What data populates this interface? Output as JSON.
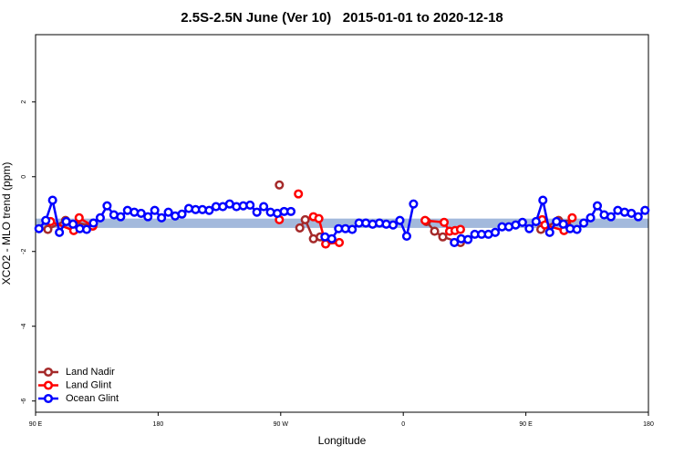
{
  "chart_data": {
    "type": "line",
    "title": "2.5S-2.5N June (Ver 10)   2015-01-01 to 2020-12-18",
    "xlabel": "Longitude",
    "ylabel": "XCO2 - MLO trend (ppm)",
    "xlim": [
      90,
      540
    ],
    "ylim": [
      -6.3,
      3.8
    ],
    "xticks": [
      {
        "value": 90,
        "label": "90 E"
      },
      180,
      {
        "value": 270,
        "label": "90 W"
      },
      {
        "value": 360,
        "label": "0"
      },
      {
        "value": 450,
        "label": "90 E"
      },
      {
        "value": 540,
        "label": "180"
      }
    ],
    "yticks": [
      -6,
      -4,
      -2,
      0,
      2
    ],
    "band": [
      -1.37,
      -1.12
    ],
    "band_color": "#a3b9dc",
    "legend": "bottom-left",
    "series": [
      {
        "name": "Land Nadir",
        "color": "#a52a2a",
        "x": [
          99,
          112,
          132,
          200,
          269,
          276,
          284,
          288,
          294,
          299,
          338,
          377,
          383,
          389,
          402,
          430,
          461,
          474,
          480
        ],
        "values": [
          -1.41,
          -1.17,
          -1.32,
          null,
          -0.22,
          null,
          -1.37,
          -1.15,
          -1.66,
          -1.61,
          null,
          -1.2,
          -1.46,
          -1.61,
          -1.76,
          null,
          -1.41,
          -1.17,
          -1.27
        ]
      },
      {
        "name": "Land Glint",
        "color": "#ff0000",
        "x": [
          101,
          118,
          122,
          132,
          200,
          269,
          276,
          283,
          288,
          294,
          298,
          303,
          313,
          345,
          376,
          390,
          394,
          398,
          402,
          430,
          462,
          464,
          478,
          484
        ],
        "values": [
          -1.2,
          -1.44,
          -1.1,
          -1.32,
          null,
          -1.15,
          null,
          -0.46,
          null,
          -1.07,
          -1.12,
          -1.8,
          -1.76,
          null,
          -1.17,
          -1.22,
          -1.46,
          -1.44,
          -1.41,
          null,
          -1.15,
          -1.29,
          -1.44,
          -1.1
        ]
      },
      {
        "name": "Ocean Glint",
        "color": "#0000ff",
        "x": [
          92.5,
          97.5,
          102.5,
          107.5,
          112.5,
          117.5,
          122.5,
          127.5,
          132.5,
          137.5,
          142.5,
          147.5,
          152.5,
          157.5,
          162.5,
          167.5,
          172.5,
          177.5,
          182.5,
          187.5,
          192.5,
          197.5,
          202.5,
          207.5,
          212.5,
          217.5,
          222.5,
          227.5,
          232.5,
          237.5,
          242.5,
          247.5,
          252.5,
          257.5,
          262.5,
          267.5,
          272.5,
          277.5,
          282.5,
          287.5,
          292.5,
          297.5,
          302.5,
          307.5,
          312.5,
          317.5,
          322.5,
          327.5,
          332.5,
          337.5,
          342.5,
          347.5,
          352.5,
          357.5,
          362.5,
          367.5,
          372.5,
          377.5,
          382.5,
          387.5,
          392.5,
          397.5,
          402.5,
          407.5,
          412.5,
          417.5,
          422.5,
          427.5,
          432.5,
          437.5,
          442.5,
          447.5,
          452.5,
          457.5,
          462.5,
          467.5,
          472.5,
          477.5,
          482.5,
          487.5,
          492.5,
          497.5,
          502.5,
          507.5,
          512.5,
          517.5,
          522.5,
          527.5,
          532.5,
          537.5
        ],
        "values": [
          -1.39,
          -1.17,
          -0.63,
          -1.49,
          -1.2,
          -1.27,
          -1.39,
          -1.41,
          -1.24,
          -1.1,
          -0.78,
          -1.02,
          -1.07,
          -0.9,
          -0.95,
          -0.98,
          -1.07,
          -0.9,
          -1.1,
          -0.95,
          -1.05,
          -1,
          -0.85,
          -0.88,
          -0.88,
          -0.9,
          -0.8,
          -0.8,
          -0.73,
          -0.8,
          -0.78,
          -0.76,
          -0.95,
          -0.8,
          -0.95,
          -0.98,
          -0.93,
          -0.93,
          null,
          null,
          null,
          null,
          -1.61,
          -1.66,
          -1.39,
          -1.39,
          -1.41,
          -1.24,
          -1.24,
          -1.27,
          -1.24,
          -1.27,
          -1.29,
          -1.17,
          -1.59,
          -0.73,
          null,
          null,
          null,
          null,
          null,
          -1.76,
          -1.66,
          -1.68,
          -1.54,
          -1.54,
          -1.54,
          -1.49,
          -1.34,
          -1.34,
          -1.29,
          -1.22,
          -1.39,
          -1.2,
          -0.63,
          -1.49,
          -1.2,
          -1.27,
          -1.39,
          -1.41,
          -1.24,
          -1.1,
          -0.78,
          -1.02,
          -1.07,
          -0.9,
          -0.95,
          -0.98,
          -1.07,
          -0.9
        ]
      }
    ]
  }
}
